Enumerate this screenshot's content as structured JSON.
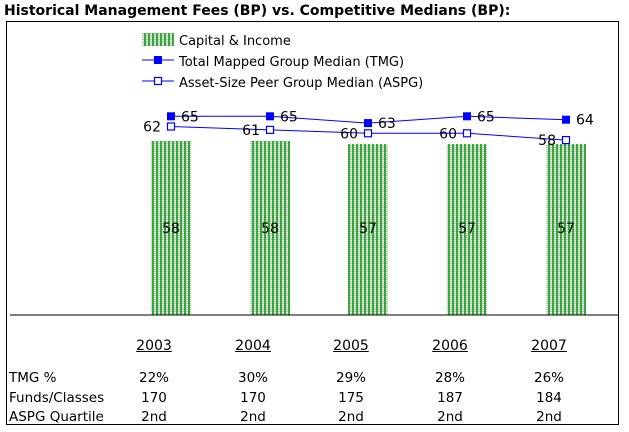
{
  "title": "Historical Management Fees (BP) vs. Competitive Medians (BP):",
  "chart_data": {
    "type": "bar",
    "categories": [
      "2003",
      "2004",
      "2005",
      "2006",
      "2007"
    ],
    "series": [
      {
        "name": "Capital & Income",
        "kind": "bar",
        "values": [
          58,
          58,
          57,
          57,
          57
        ],
        "color": "#33a033"
      },
      {
        "name": "Total Mapped Group Median (TMG)",
        "kind": "line",
        "marker": "filled-square",
        "values": [
          65,
          65,
          63,
          65,
          64
        ],
        "color": "#0000ff"
      },
      {
        "name": "Asset-Size Peer Group Median (ASPG)",
        "kind": "line",
        "marker": "open-square",
        "values": [
          62,
          61,
          60,
          60,
          58
        ],
        "color": "#0000ff"
      }
    ],
    "legend_position": "top-center",
    "xlabel": "",
    "ylabel": ""
  },
  "table": {
    "rows": [
      {
        "label": "TMG %",
        "values": [
          "22%",
          "30%",
          "29%",
          "28%",
          "26%"
        ]
      },
      {
        "label": "Funds/Classes",
        "values": [
          "170",
          "170",
          "175",
          "187",
          "184"
        ]
      },
      {
        "label": "ASPG Quartile",
        "values": [
          "2nd",
          "2nd",
          "2nd",
          "2nd",
          "2nd"
        ]
      }
    ]
  }
}
